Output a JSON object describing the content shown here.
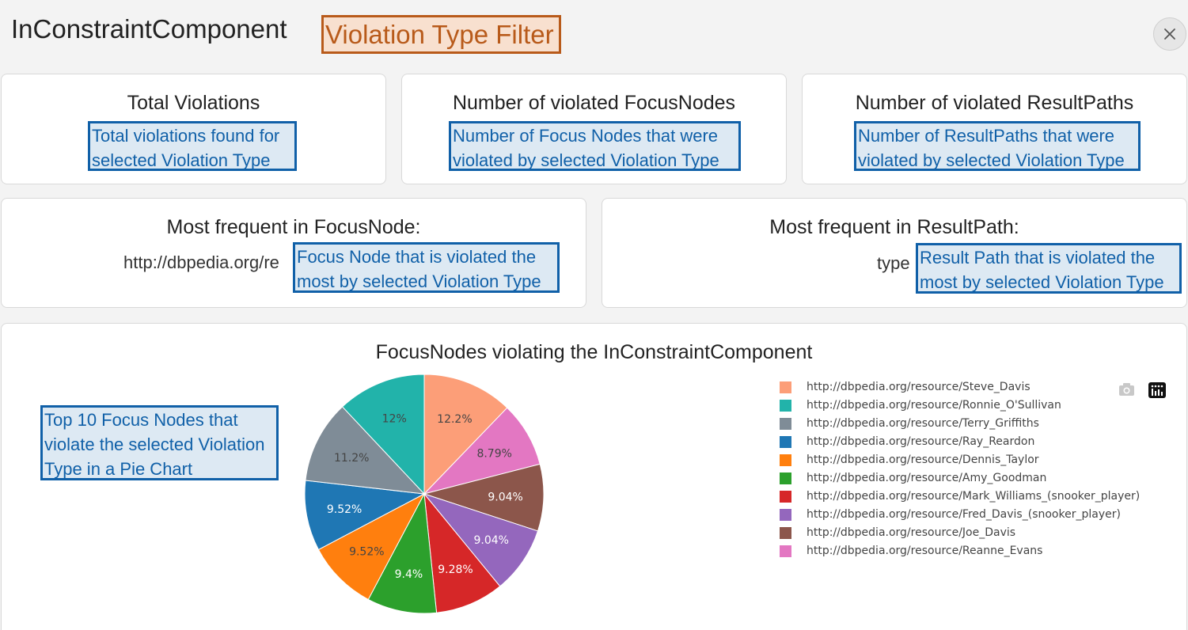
{
  "header": {
    "title": "InConstraintComponent",
    "filter_label": "Violation Type Filter",
    "close_icon": "close-icon"
  },
  "kpis": [
    {
      "heading": "Total Violations",
      "note": "Total violations found  for selected Violation Type"
    },
    {
      "heading": "Number of violated FocusNodes",
      "note": "Number of Focus Nodes that were violated by selected Violation Type"
    },
    {
      "heading": "Number of violated ResultPaths",
      "note": "Number of ResultPaths that were violated by selected Violation Type"
    }
  ],
  "frequent": [
    {
      "heading": "Most frequent in FocusNode:",
      "value": "http://dbpedia.org/re",
      "note": "Focus Node that is violated the most by selected Violation Type"
    },
    {
      "heading": "Most frequent in ResultPath:",
      "value": "type",
      "note": "Result Path that is violated the most by selected Violation Type"
    }
  ],
  "chart_note": "Top 10 Focus Nodes that violate the selected Violation Type in a Pie Chart",
  "modebar": {
    "icons": [
      "camera-icon",
      "plotly-logo-icon"
    ]
  },
  "chart_data": {
    "type": "pie",
    "title": "FocusNodes violating the InConstraintComponent",
    "legend_position": "right",
    "slices": [
      {
        "label": "http://dbpedia.org/resource/Steve_Davis",
        "value": 12.2,
        "text": "12.2%",
        "color": "#fc9e78",
        "text_color": "#444444"
      },
      {
        "label": "http://dbpedia.org/resource/Reanne_Evans",
        "value": 8.79,
        "text": "8.79%",
        "color": "#e377c2",
        "text_color": "#444444"
      },
      {
        "label": "http://dbpedia.org/resource/Joe_Davis",
        "value": 9.04,
        "text": "9.04%",
        "color": "#8c564b",
        "text_color": "#ffffff"
      },
      {
        "label": "http://dbpedia.org/resource/Fred_Davis_(snooker_player)",
        "value": 9.04,
        "text": "9.04%",
        "color": "#9467bd",
        "text_color": "#ffffff"
      },
      {
        "label": "http://dbpedia.org/resource/Mark_Williams_(snooker_player)",
        "value": 9.28,
        "text": "9.28%",
        "color": "#d62728",
        "text_color": "#ffffff"
      },
      {
        "label": "http://dbpedia.org/resource/Amy_Goodman",
        "value": 9.4,
        "text": "9.4%",
        "color": "#2ca02c",
        "text_color": "#ffffff"
      },
      {
        "label": "http://dbpedia.org/resource/Dennis_Taylor",
        "value": 9.52,
        "text": "9.52%",
        "color": "#ff7f0e",
        "text_color": "#444444"
      },
      {
        "label": "http://dbpedia.org/resource/Ray_Reardon",
        "value": 9.52,
        "text": "9.52%",
        "color": "#1f77b4",
        "text_color": "#ffffff"
      },
      {
        "label": "http://dbpedia.org/resource/Terry_Griffiths",
        "value": 11.2,
        "text": "11.2%",
        "color": "#7f8c97",
        "text_color": "#444444"
      },
      {
        "label": "http://dbpedia.org/resource/Ronnie_O'Sullivan",
        "value": 12,
        "text": "12%",
        "color": "#22b3aa",
        "text_color": "#444444"
      }
    ],
    "legend_order": [
      "http://dbpedia.org/resource/Steve_Davis",
      "http://dbpedia.org/resource/Ronnie_O'Sullivan",
      "http://dbpedia.org/resource/Terry_Griffiths",
      "http://dbpedia.org/resource/Ray_Reardon",
      "http://dbpedia.org/resource/Dennis_Taylor",
      "http://dbpedia.org/resource/Amy_Goodman",
      "http://dbpedia.org/resource/Mark_Williams_(snooker_player)",
      "http://dbpedia.org/resource/Fred_Davis_(snooker_player)",
      "http://dbpedia.org/resource/Joe_Davis",
      "http://dbpedia.org/resource/Reanne_Evans"
    ]
  }
}
